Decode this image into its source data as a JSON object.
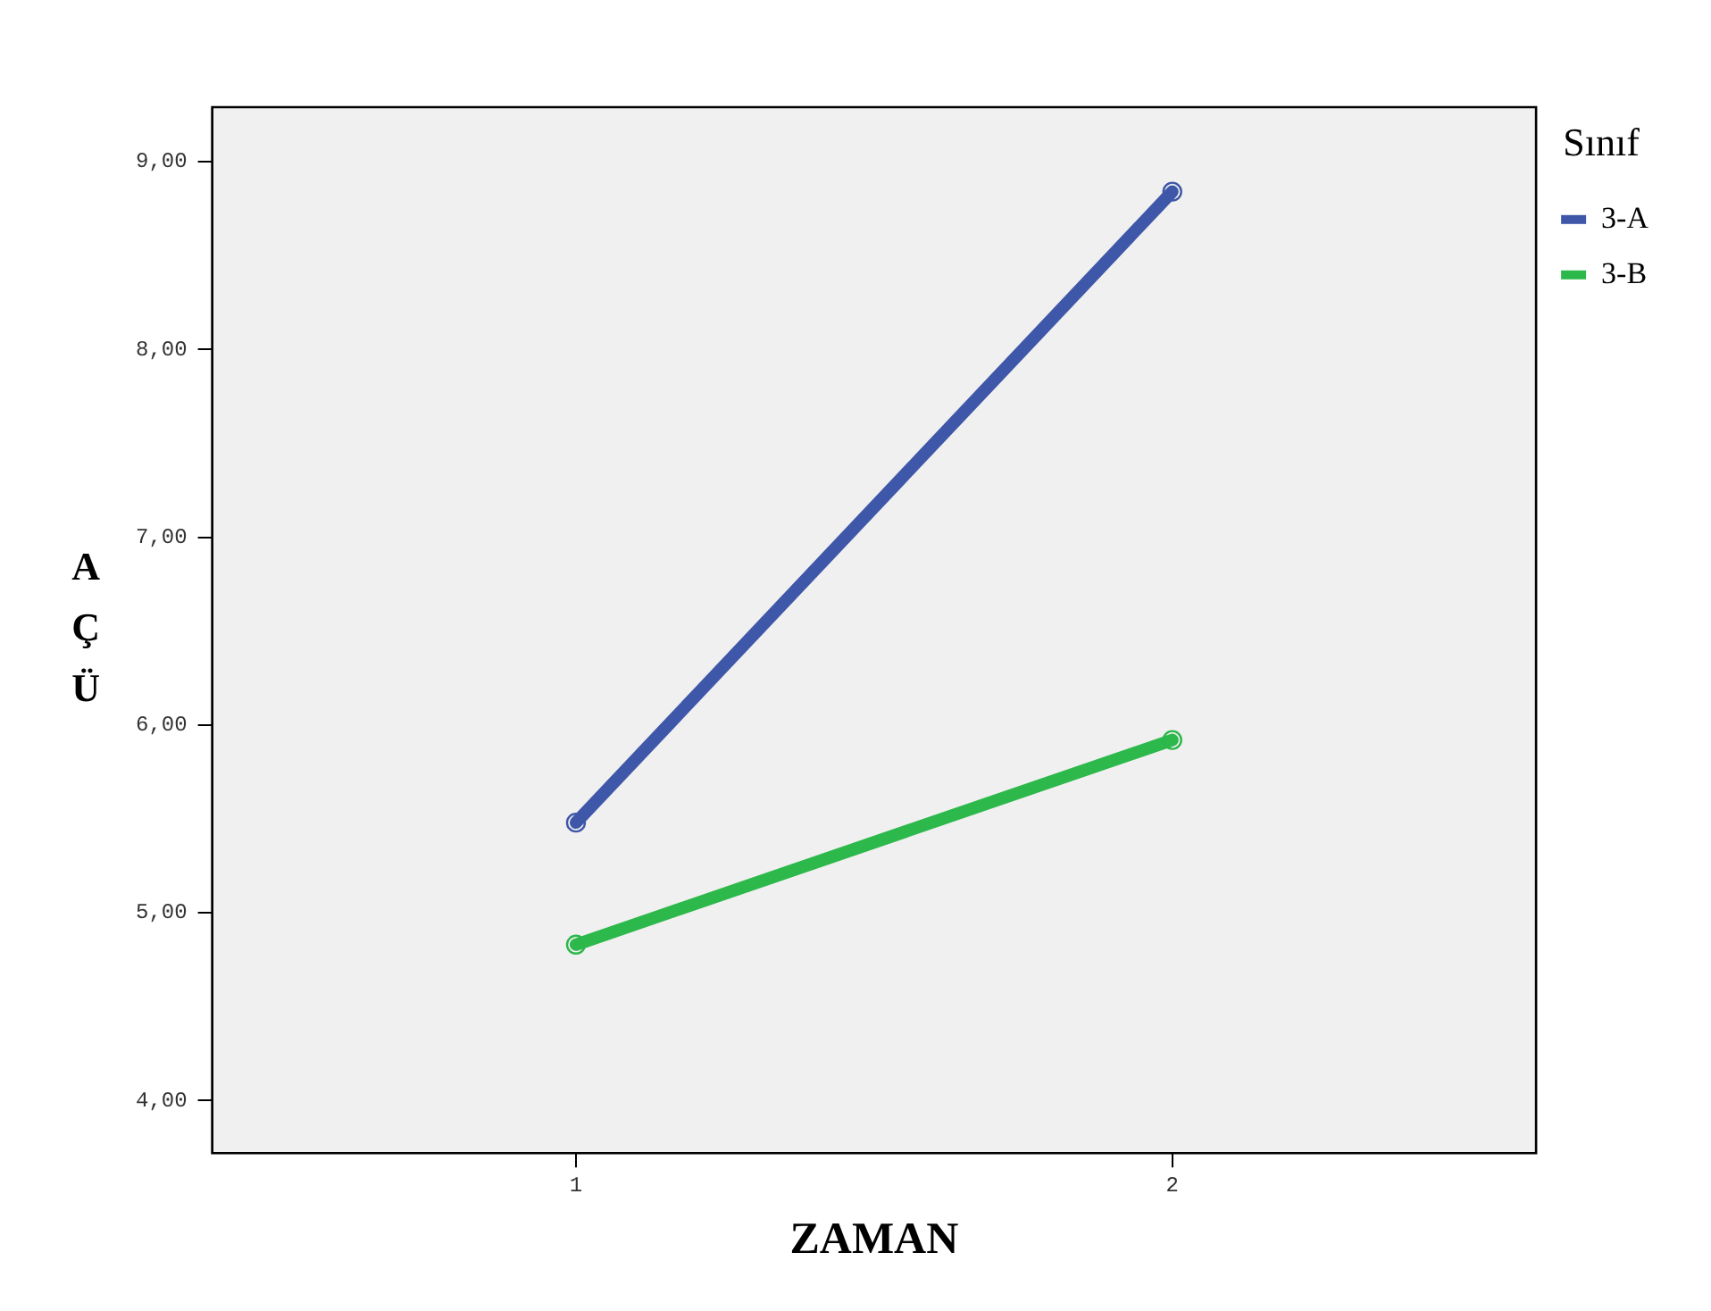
{
  "chart_data": {
    "type": "line",
    "xlabel": "ZAMAN",
    "ylabel": "AÇÜ",
    "legend_title": "Sınıf",
    "x": [
      1,
      2
    ],
    "series": [
      {
        "name": "3-A",
        "color": "#3f57a8",
        "values": [
          5.48,
          8.84
        ]
      },
      {
        "name": "3-B",
        "color": "#2cb84a",
        "values": [
          4.83,
          5.92
        ]
      }
    ],
    "xlim": [
      0.39,
      2.61
    ],
    "xticks": [
      1,
      2
    ],
    "ylim": [
      3.72,
      9.29
    ],
    "yticks": [
      {
        "value": 4,
        "label": "4,00"
      },
      {
        "value": 5,
        "label": "5,00"
      },
      {
        "value": 6,
        "label": "6,00"
      },
      {
        "value": 7,
        "label": "7,00"
      },
      {
        "value": 8,
        "label": "8,00"
      },
      {
        "value": 9,
        "label": "9,00"
      }
    ],
    "grid": false,
    "legend": "top right",
    "marker": "circle",
    "line_style": "solid"
  }
}
